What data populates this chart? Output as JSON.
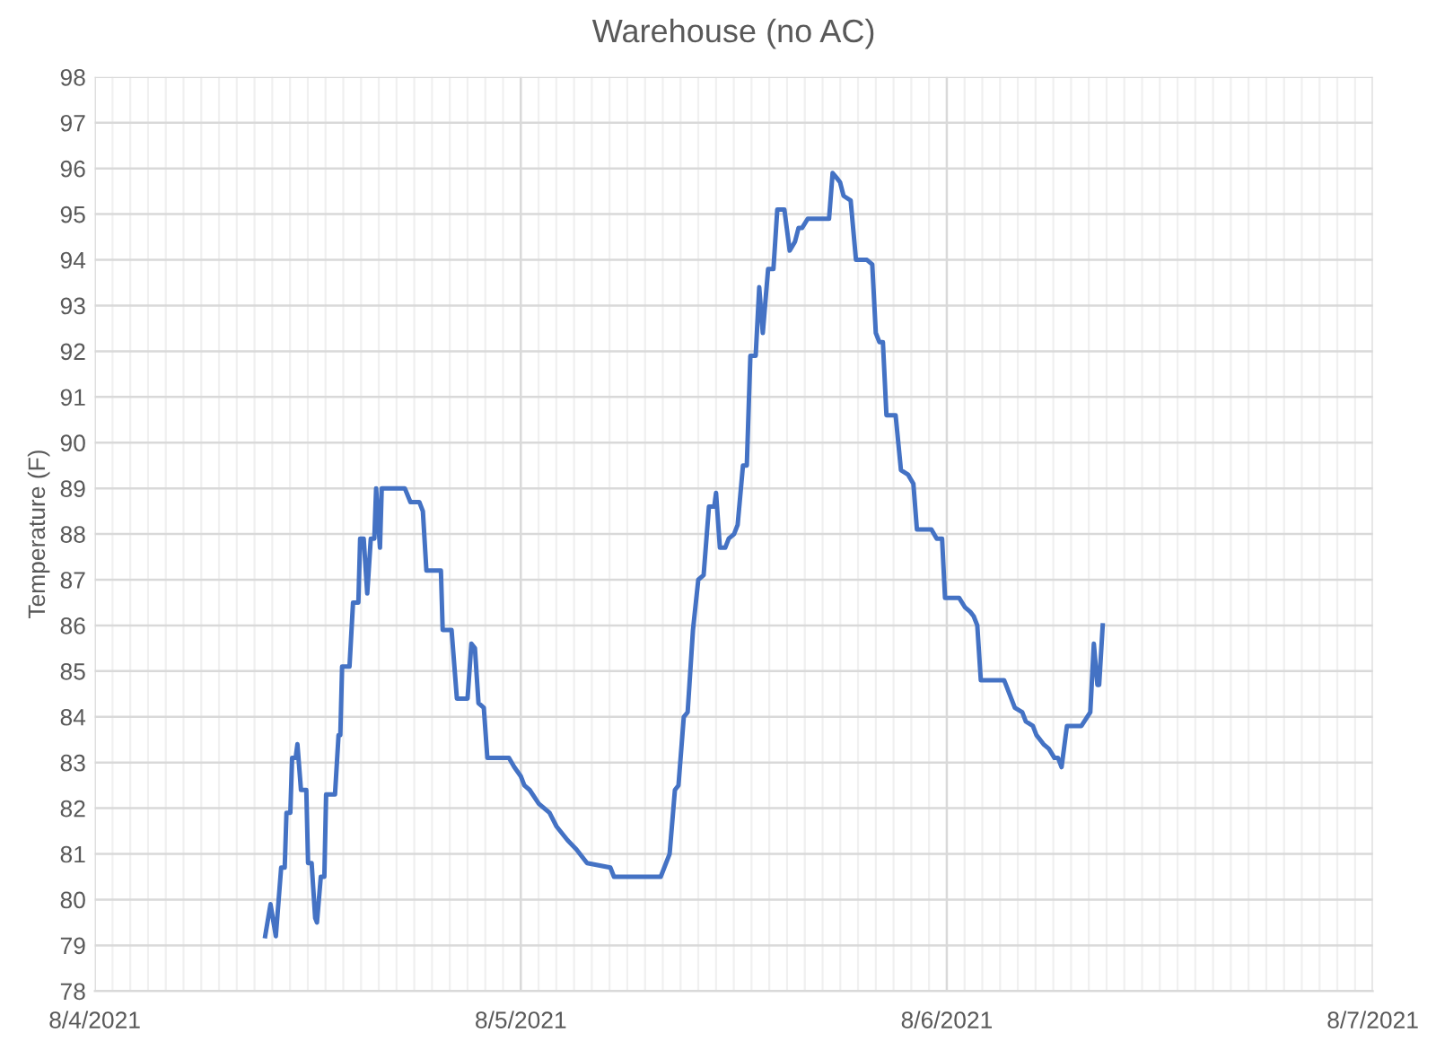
{
  "chart_data": {
    "type": "line",
    "title": "Warehouse (no AC)",
    "ylabel": "Temperature (F)",
    "xlim": [
      "2021-08-04",
      "2021-08-07"
    ],
    "xticks": [
      {
        "value": "2021-08-04",
        "label": "8/4/2021"
      },
      {
        "value": "2021-08-05",
        "label": "8/5/2021"
      },
      {
        "value": "2021-08-06",
        "label": "8/6/2021"
      },
      {
        "value": "2021-08-07",
        "label": "8/7/2021"
      }
    ],
    "ylim": [
      78,
      98
    ],
    "yticks": [
      78,
      79,
      80,
      81,
      82,
      83,
      84,
      85,
      86,
      87,
      88,
      89,
      90,
      91,
      92,
      93,
      94,
      95,
      96,
      97,
      98
    ],
    "grid": true,
    "marker": "none",
    "line_style": "solid",
    "x": [
      "2021-08-04T09:36",
      "2021-08-04T09:54",
      "2021-08-04T10:12",
      "2021-08-04T10:30",
      "2021-08-04T10:42",
      "2021-08-04T10:48",
      "2021-08-04T11:01",
      "2021-08-04T11:07",
      "2021-08-04T11:19",
      "2021-08-04T11:25",
      "2021-08-04T11:37",
      "2021-08-04T11:55",
      "2021-08-04T12:01",
      "2021-08-04T12:13",
      "2021-08-04T12:25",
      "2021-08-04T12:31",
      "2021-08-04T12:44",
      "2021-08-04T12:56",
      "2021-08-04T13:02",
      "2021-08-04T13:32",
      "2021-08-04T13:44",
      "2021-08-04T13:50",
      "2021-08-04T13:56",
      "2021-08-04T14:21",
      "2021-08-04T14:33",
      "2021-08-04T14:51",
      "2021-08-04T14:57",
      "2021-08-04T15:09",
      "2021-08-04T15:21",
      "2021-08-04T15:33",
      "2021-08-04T15:45",
      "2021-08-04T15:51",
      "2021-08-04T16:04",
      "2021-08-04T16:10",
      "2021-08-04T17:28",
      "2021-08-04T17:47",
      "2021-08-04T18:17",
      "2021-08-04T18:29",
      "2021-08-04T18:41",
      "2021-08-04T19:30",
      "2021-08-04T19:36",
      "2021-08-04T20:06",
      "2021-08-04T20:24",
      "2021-08-04T21:00",
      "2021-08-04T21:13",
      "2021-08-04T21:25",
      "2021-08-04T21:37",
      "2021-08-04T21:55",
      "2021-08-04T22:07",
      "2021-08-04T23:20",
      "2021-08-04T23:38",
      "2021-08-05T00:00",
      "2021-08-05T00:12",
      "2021-08-05T00:30",
      "2021-08-05T01:01",
      "2021-08-05T01:37",
      "2021-08-05T02:01",
      "2021-08-05T02:38",
      "2021-08-05T03:08",
      "2021-08-05T03:44",
      "2021-08-05T05:03",
      "2021-08-05T05:15",
      "2021-08-05T07:53",
      "2021-08-05T08:11",
      "2021-08-05T08:23",
      "2021-08-05T08:41",
      "2021-08-05T08:53",
      "2021-08-05T09:11",
      "2021-08-05T09:24",
      "2021-08-05T09:42",
      "2021-08-05T10:00",
      "2021-08-05T10:18",
      "2021-08-05T10:36",
      "2021-08-05T10:54",
      "2021-08-05T11:00",
      "2021-08-05T11:13",
      "2021-08-05T11:31",
      "2021-08-05T11:43",
      "2021-08-05T12:01",
      "2021-08-05T12:13",
      "2021-08-05T12:31",
      "2021-08-05T12:44",
      "2021-08-05T12:56",
      "2021-08-05T13:14",
      "2021-08-05T13:26",
      "2021-08-05T13:38",
      "2021-08-05T13:56",
      "2021-08-05T14:14",
      "2021-08-05T14:27",
      "2021-08-05T14:51",
      "2021-08-05T15:09",
      "2021-08-05T15:27",
      "2021-08-05T15:39",
      "2021-08-05T15:51",
      "2021-08-05T16:10",
      "2021-08-05T17:22",
      "2021-08-05T17:34",
      "2021-08-05T17:47",
      "2021-08-05T17:59",
      "2021-08-05T18:11",
      "2021-08-05T18:35",
      "2021-08-05T18:53",
      "2021-08-05T19:30",
      "2021-08-05T19:48",
      "2021-08-05T20:00",
      "2021-08-05T20:12",
      "2021-08-05T20:24",
      "2021-08-05T20:36",
      "2021-08-05T21:07",
      "2021-08-05T21:25",
      "2021-08-05T21:49",
      "2021-08-05T22:07",
      "2021-08-05T22:19",
      "2021-08-05T23:08",
      "2021-08-05T23:26",
      "2021-08-05T23:44",
      "2021-08-05T23:54",
      "2021-08-06T00:42",
      "2021-08-06T01:01",
      "2021-08-06T01:19",
      "2021-08-06T01:31",
      "2021-08-06T01:43",
      "2021-08-06T01:55",
      "2021-08-06T03:14",
      "2021-08-06T03:32",
      "2021-08-06T03:50",
      "2021-08-06T04:15",
      "2021-08-06T04:27",
      "2021-08-06T04:51",
      "2021-08-06T05:03",
      "2021-08-06T05:27",
      "2021-08-06T05:45",
      "2021-08-06T06:04",
      "2021-08-06T06:16",
      "2021-08-06T06:28",
      "2021-08-06T06:46",
      "2021-08-06T07:35",
      "2021-08-06T08:05",
      "2021-08-06T08:17",
      "2021-08-06T08:29",
      "2021-08-06T08:35",
      "2021-08-06T08:47"
    ],
    "series": [
      {
        "color": "#4472c4",
        "values": [
          79.2,
          79.9,
          79.2,
          80.7,
          80.7,
          81.9,
          81.9,
          83.1,
          83.1,
          83.4,
          82.4,
          82.4,
          80.8,
          80.8,
          79.6,
          79.5,
          80.5,
          80.5,
          82.3,
          82.3,
          83.6,
          83.6,
          85.1,
          85.1,
          86.5,
          86.5,
          87.9,
          87.9,
          86.7,
          87.9,
          87.9,
          89.0,
          87.7,
          89.0,
          89.0,
          88.7,
          88.7,
          88.5,
          87.2,
          87.2,
          85.9,
          85.9,
          84.4,
          84.4,
          85.6,
          85.5,
          84.3,
          84.2,
          83.1,
          83.1,
          82.9,
          82.7,
          82.5,
          82.4,
          82.1,
          81.9,
          81.6,
          81.3,
          81.1,
          80.8,
          80.7,
          80.5,
          80.5,
          80.8,
          81.0,
          82.4,
          82.5,
          84.0,
          84.1,
          85.9,
          87.0,
          87.1,
          88.6,
          88.6,
          88.9,
          87.7,
          87.7,
          87.9,
          88.0,
          88.2,
          89.5,
          89.5,
          91.9,
          91.9,
          93.4,
          92.4,
          93.8,
          93.8,
          95.1,
          95.1,
          94.2,
          94.4,
          94.7,
          94.7,
          94.9,
          94.9,
          95.9,
          95.8,
          95.7,
          95.4,
          95.3,
          94.0,
          94.0,
          93.9,
          92.4,
          92.2,
          92.2,
          90.6,
          90.6,
          89.4,
          89.3,
          89.1,
          88.1,
          88.1,
          87.9,
          87.9,
          86.6,
          86.6,
          86.4,
          86.3,
          86.2,
          86.0,
          84.8,
          84.8,
          84.5,
          84.2,
          84.1,
          83.9,
          83.8,
          83.6,
          83.4,
          83.3,
          83.1,
          83.1,
          82.9,
          83.8,
          83.8,
          84.1,
          85.6,
          84.7,
          84.7,
          86.0
        ]
      }
    ]
  }
}
